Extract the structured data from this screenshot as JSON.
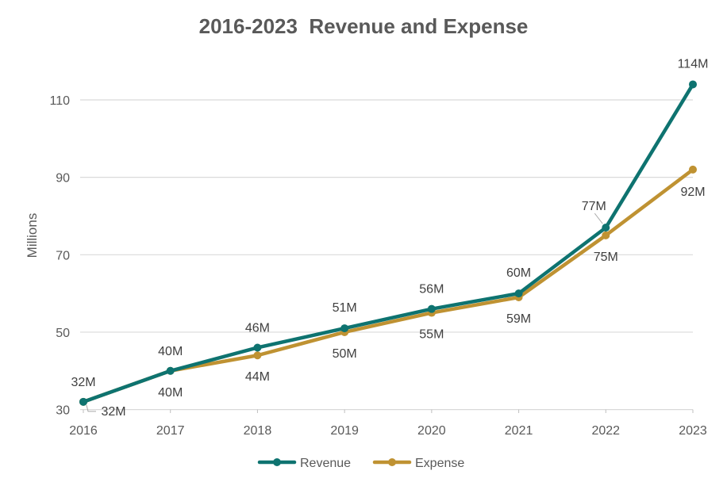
{
  "chart_data": {
    "type": "line",
    "title": "2016-2023  Revenue and Expense",
    "xlabel": "",
    "ylabel": "Millions",
    "categories": [
      "2016",
      "2017",
      "2018",
      "2019",
      "2020",
      "2021",
      "2022",
      "2023"
    ],
    "ylim": [
      30,
      114
    ],
    "yticks": [
      "30",
      "50",
      "70",
      "90",
      "110"
    ],
    "grid": true,
    "legend_position": "bottom",
    "series": [
      {
        "name": "Revenue",
        "color": "#0e7370",
        "values": [
          32,
          40,
          46,
          51,
          56,
          60,
          77,
          114
        ],
        "labels": [
          "32M",
          "40M",
          "46M",
          "51M",
          "56M",
          "60M",
          "77M",
          "114M"
        ]
      },
      {
        "name": "Expense",
        "color": "#bf9232",
        "values": [
          32,
          40,
          44,
          50,
          55,
          59,
          75,
          92
        ],
        "labels": [
          "32M",
          "40M",
          "44M",
          "50M",
          "55M",
          "59M",
          "75M",
          "92M"
        ]
      }
    ]
  }
}
